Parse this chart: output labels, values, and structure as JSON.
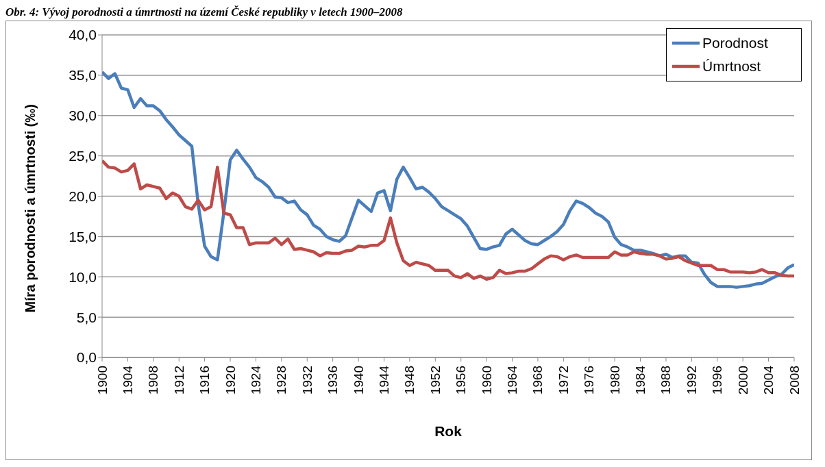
{
  "chart_data": {
    "type": "line",
    "title": "Obr. 4: Vývoj porodnosti a úmrtnosti na území České republiky v letech 1900–2008",
    "xlabel": "Rok",
    "ylabel": "Míra porodnosti a úmrtnosti (‰)",
    "x": [
      1900,
      1901,
      1902,
      1903,
      1904,
      1905,
      1906,
      1907,
      1908,
      1909,
      1910,
      1911,
      1912,
      1913,
      1914,
      1915,
      1916,
      1917,
      1918,
      1919,
      1920,
      1921,
      1922,
      1923,
      1924,
      1925,
      1926,
      1927,
      1928,
      1929,
      1930,
      1931,
      1932,
      1933,
      1934,
      1935,
      1936,
      1937,
      1938,
      1939,
      1940,
      1941,
      1942,
      1943,
      1944,
      1945,
      1946,
      1947,
      1948,
      1949,
      1950,
      1951,
      1952,
      1953,
      1954,
      1955,
      1956,
      1957,
      1958,
      1959,
      1960,
      1961,
      1962,
      1963,
      1964,
      1965,
      1966,
      1967,
      1968,
      1969,
      1970,
      1971,
      1972,
      1973,
      1974,
      1975,
      1976,
      1977,
      1978,
      1979,
      1980,
      1981,
      1982,
      1983,
      1984,
      1985,
      1986,
      1987,
      1988,
      1989,
      1990,
      1991,
      1992,
      1993,
      1994,
      1995,
      1996,
      1997,
      1998,
      1999,
      2000,
      2001,
      2002,
      2003,
      2004,
      2005,
      2006,
      2007,
      2008
    ],
    "series": [
      {
        "name": "Porodnost",
        "color": "#4a7ebb",
        "values": [
          35.4,
          34.6,
          35.2,
          33.4,
          33.2,
          31.0,
          32.1,
          31.2,
          31.2,
          30.6,
          29.5,
          28.6,
          27.6,
          26.9,
          26.2,
          19.0,
          13.8,
          12.5,
          12.1,
          18.0,
          24.5,
          25.7,
          24.6,
          23.6,
          22.3,
          21.8,
          21.1,
          19.9,
          19.8,
          19.2,
          19.4,
          18.3,
          17.7,
          16.4,
          15.9,
          15.0,
          14.6,
          14.4,
          15.1,
          17.3,
          19.5,
          18.8,
          18.1,
          20.4,
          20.7,
          18.2,
          22.1,
          23.6,
          22.3,
          20.9,
          21.1,
          20.5,
          19.7,
          18.7,
          18.2,
          17.7,
          17.2,
          16.3,
          14.9,
          13.5,
          13.4,
          13.7,
          13.9,
          15.3,
          15.9,
          15.2,
          14.5,
          14.1,
          14.0,
          14.5,
          15.0,
          15.6,
          16.5,
          18.2,
          19.4,
          19.1,
          18.6,
          17.9,
          17.5,
          16.8,
          14.9,
          14.0,
          13.7,
          13.3,
          13.3,
          13.1,
          12.9,
          12.6,
          12.8,
          12.4,
          12.6,
          12.6,
          11.8,
          11.7,
          10.3,
          9.3,
          8.8,
          8.8,
          8.8,
          8.7,
          8.8,
          8.9,
          9.1,
          9.2,
          9.6,
          10.0,
          10.3,
          11.1,
          11.5
        ]
      },
      {
        "name": "Úmrtnost",
        "color": "#be4b48",
        "values": [
          24.4,
          23.6,
          23.5,
          23.0,
          23.2,
          24.0,
          20.9,
          21.4,
          21.2,
          21.0,
          19.7,
          20.4,
          20.0,
          18.7,
          18.4,
          19.5,
          18.3,
          18.7,
          23.6,
          17.9,
          17.7,
          16.1,
          16.1,
          14.0,
          14.2,
          14.2,
          14.2,
          14.8,
          14.0,
          14.7,
          13.4,
          13.5,
          13.3,
          13.1,
          12.6,
          13.0,
          12.9,
          12.9,
          13.2,
          13.3,
          13.8,
          13.7,
          13.9,
          13.9,
          14.5,
          17.3,
          14.2,
          12.0,
          11.4,
          11.8,
          11.6,
          11.4,
          10.8,
          10.8,
          10.8,
          10.1,
          9.9,
          10.4,
          9.8,
          10.1,
          9.7,
          9.9,
          10.8,
          10.4,
          10.5,
          10.7,
          10.7,
          11.0,
          11.6,
          12.2,
          12.6,
          12.5,
          12.1,
          12.5,
          12.7,
          12.4,
          12.4,
          12.4,
          12.4,
          12.4,
          13.1,
          12.7,
          12.7,
          13.1,
          12.9,
          12.8,
          12.8,
          12.6,
          12.2,
          12.3,
          12.5,
          12.0,
          11.7,
          11.4,
          11.4,
          11.4,
          10.9,
          10.9,
          10.6,
          10.6,
          10.6,
          10.5,
          10.6,
          10.9,
          10.5,
          10.5,
          10.2,
          10.1,
          10.1
        ]
      }
    ],
    "xlim": [
      1900,
      2008
    ],
    "xticks": [
      1900,
      1904,
      1908,
      1912,
      1916,
      1920,
      1924,
      1928,
      1932,
      1936,
      1940,
      1944,
      1948,
      1952,
      1956,
      1960,
      1964,
      1968,
      1972,
      1976,
      1980,
      1984,
      1988,
      1992,
      1996,
      2000,
      2004,
      2008
    ],
    "ylim": [
      0,
      40
    ],
    "yticks": [
      {
        "value": 0,
        "label": "0,0"
      },
      {
        "value": 5,
        "label": "5,0"
      },
      {
        "value": 10,
        "label": "10,0"
      },
      {
        "value": 15,
        "label": "15,0"
      },
      {
        "value": 20,
        "label": "20,0"
      },
      {
        "value": 25,
        "label": "25,0"
      },
      {
        "value": 30,
        "label": "30,0"
      },
      {
        "value": 35,
        "label": "35,0"
      },
      {
        "value": 40,
        "label": "40,0"
      }
    ],
    "grid": "y",
    "legend": "top right",
    "marker": "none",
    "line_style": "solid"
  }
}
